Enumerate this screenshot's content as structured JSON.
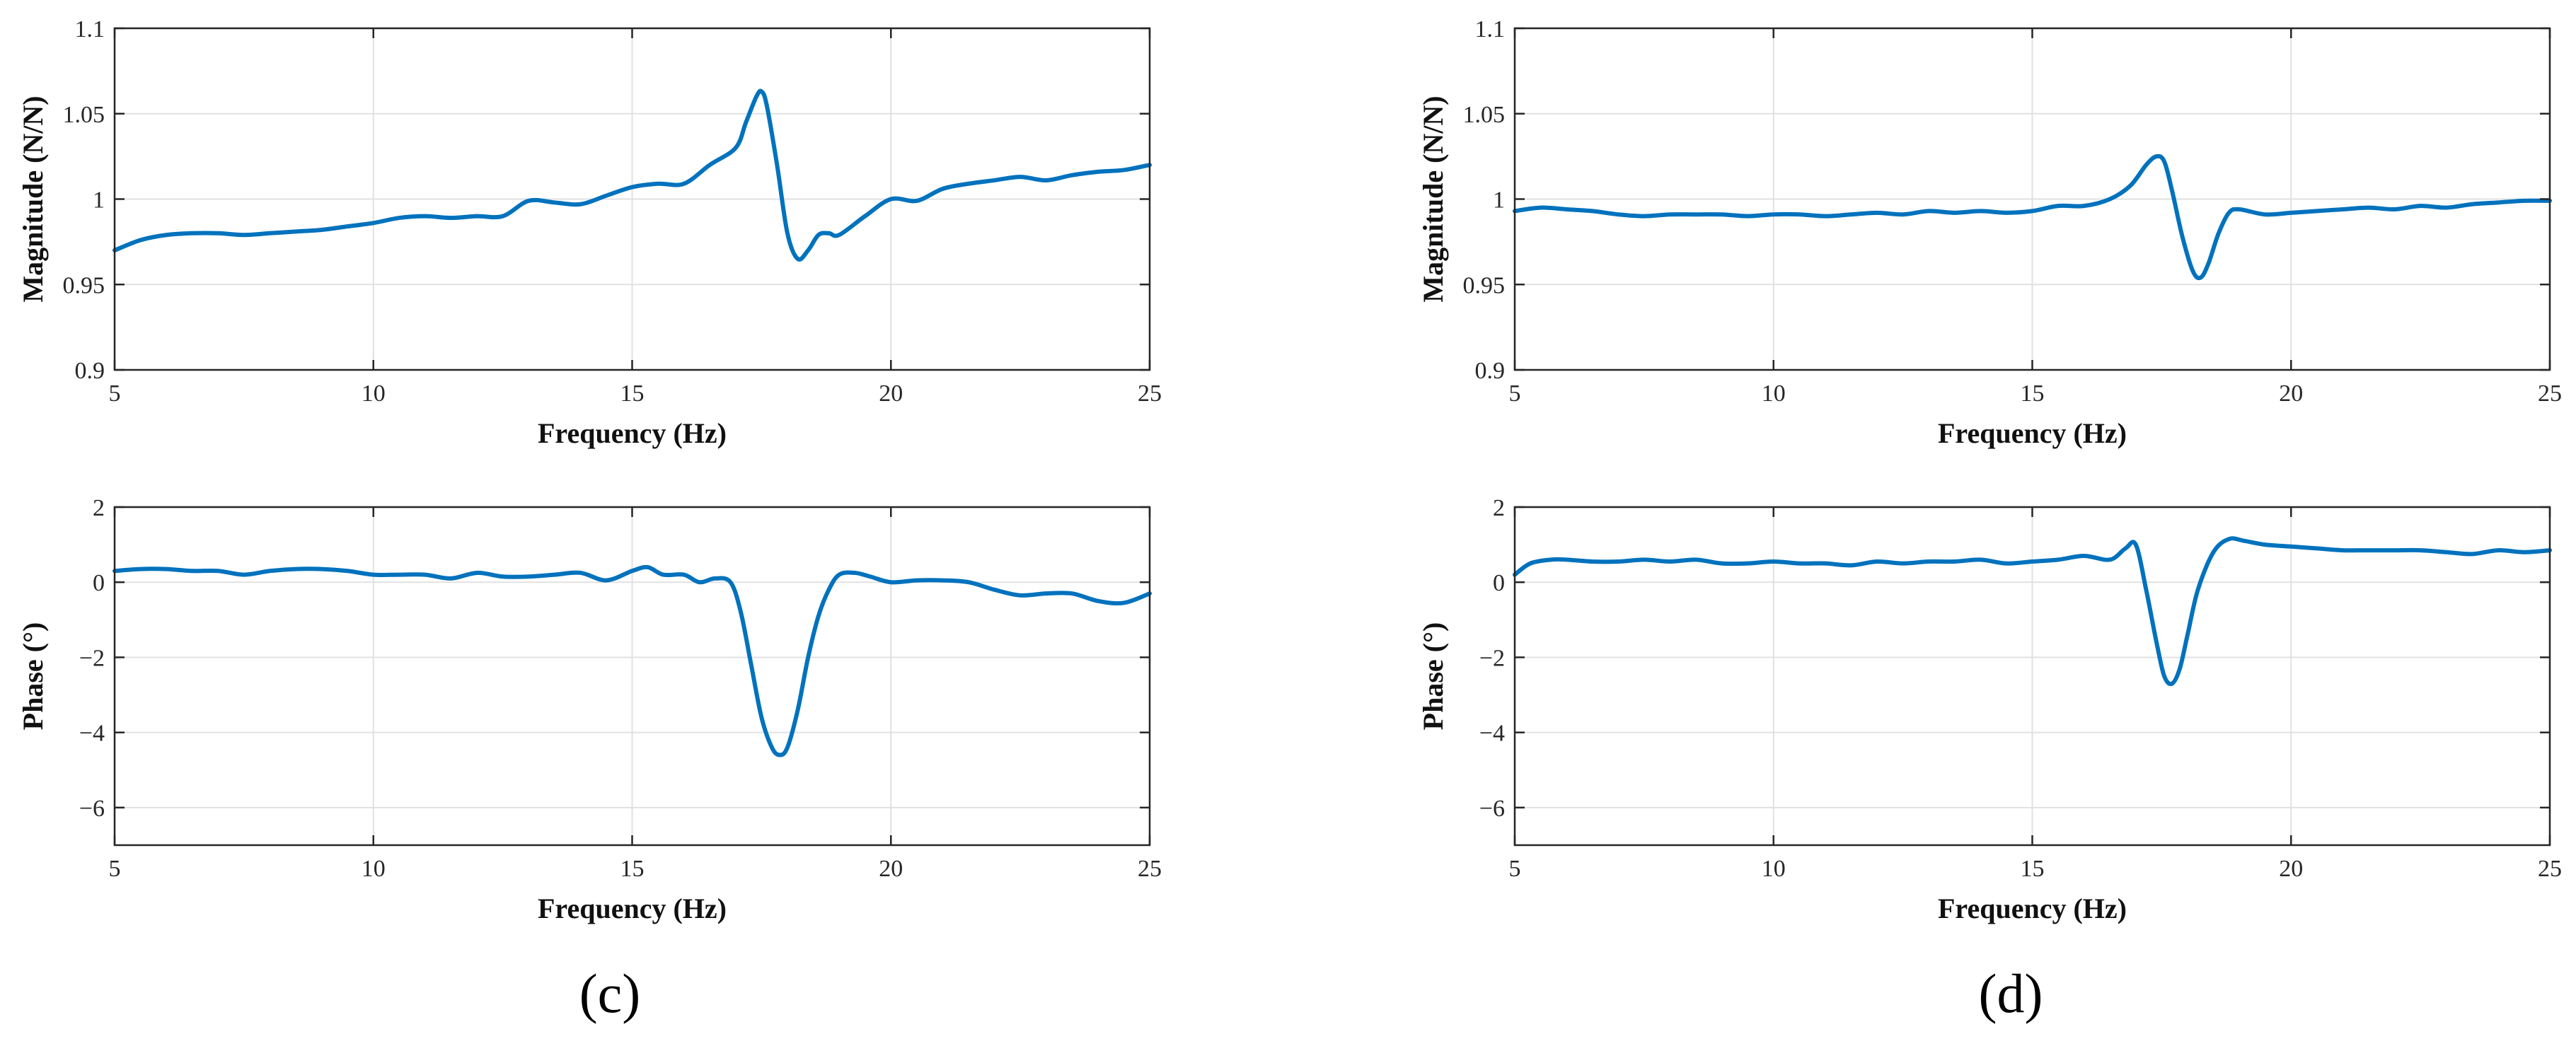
{
  "colors": {
    "line": "#0072BD",
    "grid": "#e1e1e1",
    "axis": "#262626"
  },
  "panels": [
    {
      "label": "(c)"
    },
    {
      "label": "(d)"
    }
  ],
  "chart_data": [
    {
      "type": "line",
      "panel": "c",
      "title": "",
      "xlabel": "Frequency (Hz)",
      "ylabel": "Magnitude (N/N)",
      "xlim": [
        5,
        25
      ],
      "ylim": [
        0.9,
        1.1
      ],
      "xticks": [
        5,
        10,
        15,
        20,
        25
      ],
      "yticks": [
        0.9,
        0.95,
        1,
        1.05,
        1.1
      ],
      "xtick_labels": [
        "5",
        "10",
        "15",
        "20",
        "25"
      ],
      "ytick_labels": [
        "0.9",
        "0.95",
        "1",
        "1.05",
        "1.1"
      ],
      "grid": true,
      "x": [
        5,
        5.5,
        6,
        6.5,
        7,
        7.5,
        8,
        8.5,
        9,
        9.5,
        10,
        10.5,
        11,
        11.5,
        12,
        12.5,
        13,
        13.5,
        14,
        14.5,
        15,
        15.5,
        16,
        16.5,
        17,
        17.2,
        17.4,
        17.5,
        17.6,
        17.8,
        18,
        18.2,
        18.4,
        18.6,
        18.8,
        19,
        19.5,
        20,
        20.5,
        21,
        21.5,
        22,
        22.5,
        23,
        23.5,
        24,
        24.5,
        25
      ],
      "y": [
        0.97,
        0.976,
        0.979,
        0.98,
        0.98,
        0.979,
        0.98,
        0.981,
        0.982,
        0.984,
        0.986,
        0.989,
        0.99,
        0.989,
        0.99,
        0.99,
        0.999,
        0.998,
        0.997,
        1.002,
        1.007,
        1.009,
        1.009,
        1.02,
        1.03,
        1.045,
        1.06,
        1.063,
        1.055,
        1.02,
        0.98,
        0.965,
        0.97,
        0.979,
        0.98,
        0.979,
        0.99,
        1.0,
        0.999,
        1.006,
        1.009,
        1.011,
        1.013,
        1.011,
        1.014,
        1.016,
        1.017,
        1.02
      ]
    },
    {
      "type": "line",
      "panel": "c",
      "title": "",
      "xlabel": "Frequency (Hz)",
      "ylabel": "Phase (°)",
      "xlim": [
        5,
        25
      ],
      "ylim": [
        -7,
        2
      ],
      "xticks": [
        5,
        10,
        15,
        20,
        25
      ],
      "yticks": [
        -6,
        -4,
        -2,
        0,
        2
      ],
      "xtick_labels": [
        "5",
        "10",
        "15",
        "20",
        "25"
      ],
      "ytick_labels": [
        "−6",
        "−4",
        "−2",
        "0",
        "2"
      ],
      "grid": true,
      "x": [
        5,
        5.5,
        6,
        6.5,
        7,
        7.5,
        8,
        8.5,
        9,
        9.5,
        10,
        10.5,
        11,
        11.5,
        12,
        12.5,
        13,
        13.5,
        14,
        14.5,
        15,
        15.3,
        15.6,
        16,
        16.3,
        16.6,
        16.9,
        17.1,
        17.3,
        17.5,
        17.7,
        17.85,
        18,
        18.2,
        18.4,
        18.6,
        18.8,
        19,
        19.3,
        19.6,
        20,
        20.5,
        21,
        21.5,
        22,
        22.5,
        23,
        23.5,
        24,
        24.5,
        25
      ],
      "y": [
        0.3,
        0.35,
        0.35,
        0.3,
        0.3,
        0.2,
        0.3,
        0.35,
        0.35,
        0.3,
        0.2,
        0.2,
        0.2,
        0.1,
        0.25,
        0.15,
        0.15,
        0.2,
        0.25,
        0.05,
        0.3,
        0.4,
        0.2,
        0.2,
        0.0,
        0.1,
        0.0,
        -0.8,
        -2.2,
        -3.6,
        -4.4,
        -4.6,
        -4.4,
        -3.4,
        -2.0,
        -0.9,
        -0.2,
        0.2,
        0.25,
        0.15,
        0.0,
        0.05,
        0.05,
        0.0,
        -0.2,
        -0.35,
        -0.3,
        -0.3,
        -0.5,
        -0.55,
        -0.3
      ]
    },
    {
      "type": "line",
      "panel": "d",
      "title": "",
      "xlabel": "Frequency (Hz)",
      "ylabel": "Magnitude (N/N)",
      "xlim": [
        5,
        25
      ],
      "ylim": [
        0.9,
        1.1
      ],
      "xticks": [
        5,
        10,
        15,
        20,
        25
      ],
      "yticks": [
        0.9,
        0.95,
        1,
        1.05,
        1.1
      ],
      "xtick_labels": [
        "5",
        "10",
        "15",
        "20",
        "25"
      ],
      "ytick_labels": [
        "0.9",
        "0.95",
        "1",
        "1.05",
        "1.1"
      ],
      "grid": true,
      "x": [
        5,
        5.5,
        6,
        6.5,
        7,
        7.5,
        8,
        8.5,
        9,
        9.5,
        10,
        10.5,
        11,
        11.5,
        12,
        12.5,
        13,
        13.5,
        14,
        14.5,
        15,
        15.5,
        16,
        16.5,
        16.9,
        17.2,
        17.4,
        17.55,
        17.7,
        17.9,
        18.1,
        18.25,
        18.4,
        18.6,
        18.8,
        19,
        19.5,
        20,
        20.5,
        21,
        21.5,
        22,
        22.5,
        23,
        23.5,
        24,
        24.5,
        25
      ],
      "y": [
        0.993,
        0.995,
        0.994,
        0.993,
        0.991,
        0.99,
        0.991,
        0.991,
        0.991,
        0.99,
        0.991,
        0.991,
        0.99,
        0.991,
        0.992,
        0.991,
        0.993,
        0.992,
        0.993,
        0.992,
        0.993,
        0.996,
        0.996,
        1.0,
        1.008,
        1.02,
        1.025,
        1.022,
        1.005,
        0.978,
        0.958,
        0.954,
        0.962,
        0.98,
        0.992,
        0.994,
        0.991,
        0.992,
        0.993,
        0.994,
        0.995,
        0.994,
        0.996,
        0.995,
        0.997,
        0.998,
        0.999,
        0.999
      ]
    },
    {
      "type": "line",
      "panel": "d",
      "title": "",
      "xlabel": "Frequency (Hz)",
      "ylabel": "Phase (°)",
      "xlim": [
        5,
        25
      ],
      "ylim": [
        -7,
        2
      ],
      "xticks": [
        5,
        10,
        15,
        20,
        25
      ],
      "yticks": [
        -6,
        -4,
        -2,
        0,
        2
      ],
      "xtick_labels": [
        "5",
        "10",
        "15",
        "20",
        "25"
      ],
      "ytick_labels": [
        "−6",
        "−4",
        "−2",
        "0",
        "2"
      ],
      "grid": true,
      "x": [
        5,
        5.3,
        5.7,
        6,
        6.5,
        7,
        7.5,
        8,
        8.5,
        9,
        9.5,
        10,
        10.5,
        11,
        11.5,
        12,
        12.5,
        13,
        13.5,
        14,
        14.5,
        15,
        15.5,
        16,
        16.5,
        16.8,
        17,
        17.2,
        17.4,
        17.55,
        17.7,
        17.85,
        18,
        18.2,
        18.5,
        18.8,
        19.1,
        19.5,
        20,
        20.5,
        21,
        21.5,
        22,
        22.5,
        23,
        23.5,
        24,
        24.5,
        25
      ],
      "y": [
        0.2,
        0.5,
        0.6,
        0.6,
        0.55,
        0.55,
        0.6,
        0.55,
        0.6,
        0.5,
        0.5,
        0.55,
        0.5,
        0.5,
        0.45,
        0.55,
        0.5,
        0.55,
        0.55,
        0.6,
        0.5,
        0.55,
        0.6,
        0.7,
        0.6,
        0.9,
        1.0,
        -0.2,
        -1.6,
        -2.5,
        -2.7,
        -2.3,
        -1.4,
        -0.2,
        0.8,
        1.15,
        1.1,
        1.0,
        0.95,
        0.9,
        0.85,
        0.85,
        0.85,
        0.85,
        0.8,
        0.75,
        0.85,
        0.8,
        0.85
      ]
    }
  ]
}
